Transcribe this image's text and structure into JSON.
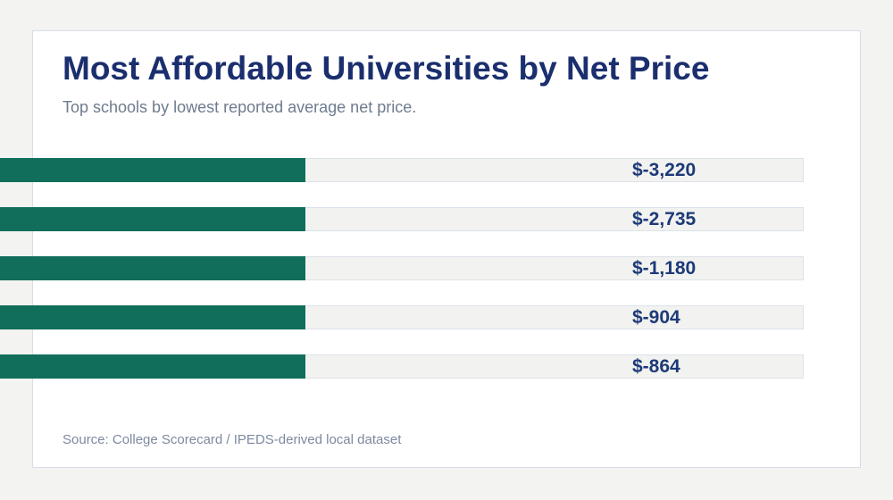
{
  "page": {
    "background_color": "#f3f3f1",
    "card_border_color": "#d8dee6"
  },
  "header": {
    "title": "Most Affordable Universities by Net Price",
    "subtitle": "Top schools by lowest reported average net price."
  },
  "footer": {
    "source": "Source: College Scorecard / IPEDS-derived local dataset"
  },
  "chart_data": {
    "type": "bar",
    "orientation": "horizontal",
    "title": "Most Affordable Universities by Net Price",
    "subtitle": "Top schools by lowest reported average net price.",
    "categories": [
      "",
      "",
      "",
      "",
      ""
    ],
    "values": [
      -3220,
      -2735,
      -1180,
      -904,
      -864
    ],
    "value_labels": [
      "$-3,220",
      "$-2,735",
      "$-1,180",
      "$-904",
      "$-864"
    ],
    "bar_color": "#106e5a",
    "track_color": "#f2f2f0",
    "track_border_color": "#dce2e9",
    "value_label_color": "#1d3a78",
    "grid": false,
    "legend": false,
    "layout_hints": {
      "bars_equal_rendered_length": true,
      "bars_bleed_off_left_edge": true,
      "value_labels_inside_track": true
    }
  }
}
